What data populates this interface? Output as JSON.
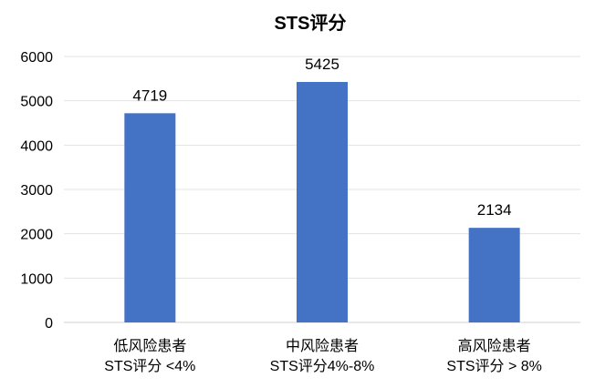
{
  "chart_data": {
    "type": "bar",
    "title": "STS评分",
    "categories": [
      [
        "低风险患者",
        "STS评分 <4%"
      ],
      [
        "中风险患者",
        "STS评分4%-8%"
      ],
      [
        "高风险患者",
        "STS评分 > 8%"
      ]
    ],
    "values": [
      4719,
      5425,
      2134
    ],
    "ylim": [
      0,
      6000
    ],
    "yticks": [
      0,
      1000,
      2000,
      3000,
      4000,
      5000,
      6000
    ],
    "grid": true,
    "legend": "none",
    "colors": {
      "bar": "#4472C4"
    }
  }
}
